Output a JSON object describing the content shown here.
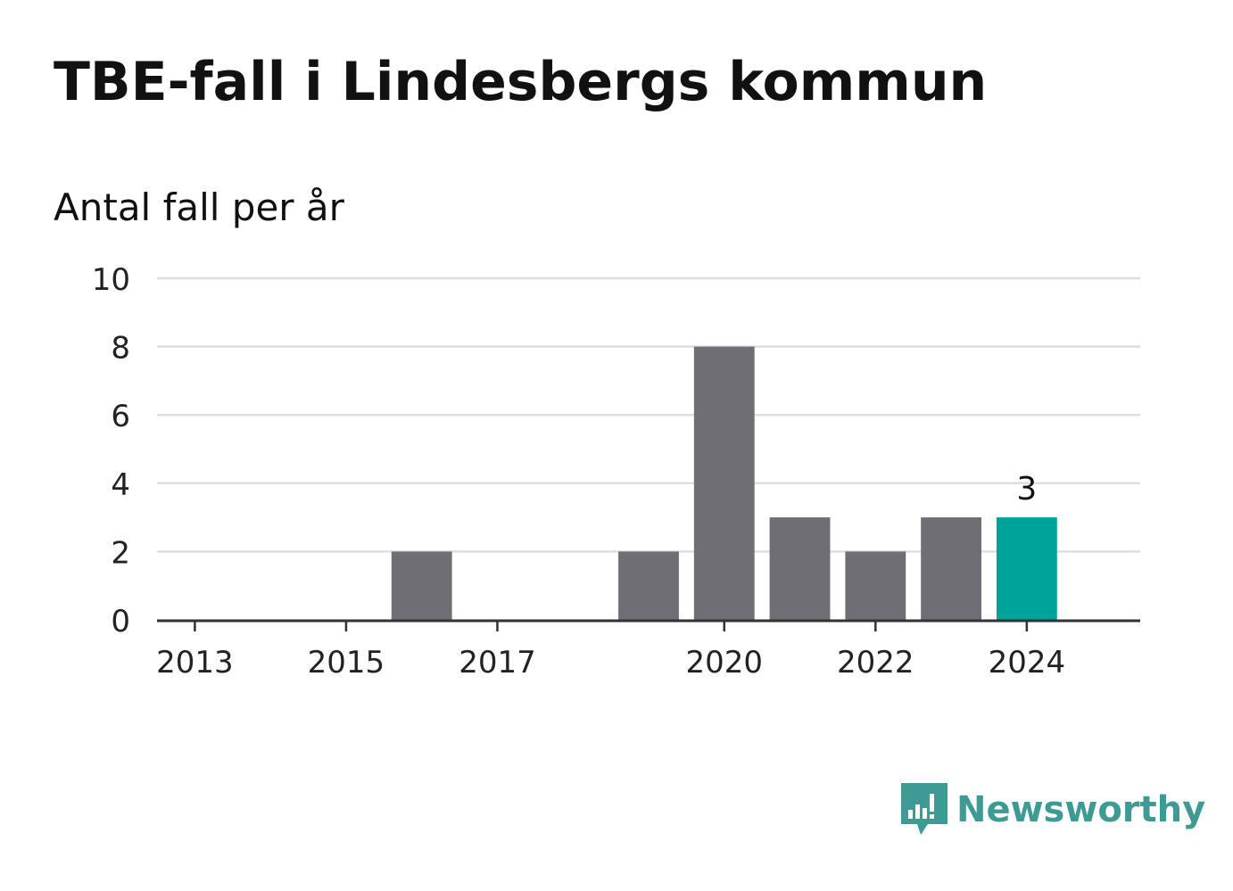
{
  "header": {
    "title": "TBE-fall i Lindesbergs kommun",
    "subtitle": "Antal fall per år"
  },
  "chart_data": {
    "type": "bar",
    "title": "TBE-fall i Lindesbergs kommun",
    "subtitle": "Antal fall per år",
    "xlabel": "",
    "ylabel": "",
    "categories": [
      2013,
      2014,
      2015,
      2016,
      2017,
      2018,
      2019,
      2020,
      2021,
      2022,
      2023,
      2024
    ],
    "values": [
      0,
      0,
      0,
      2,
      0,
      0,
      2,
      8,
      3,
      2,
      3,
      3
    ],
    "x_tick_labels": [
      "2013",
      "2015",
      "2017",
      "2020",
      "2022",
      "2024"
    ],
    "y_ticks": [
      0,
      2,
      4,
      6,
      8,
      10
    ],
    "ylim": [
      0,
      10
    ],
    "grid": true,
    "highlight": {
      "category": 2024,
      "label": "3"
    },
    "colors": {
      "bar": "#6f6e74",
      "highlight": "#00a39a",
      "grid": "#dedede",
      "axis": "#333333"
    }
  },
  "brand": {
    "name": "Newsworthy",
    "color": "#3d9b94",
    "icon": "newsworthy-logo-icon"
  }
}
